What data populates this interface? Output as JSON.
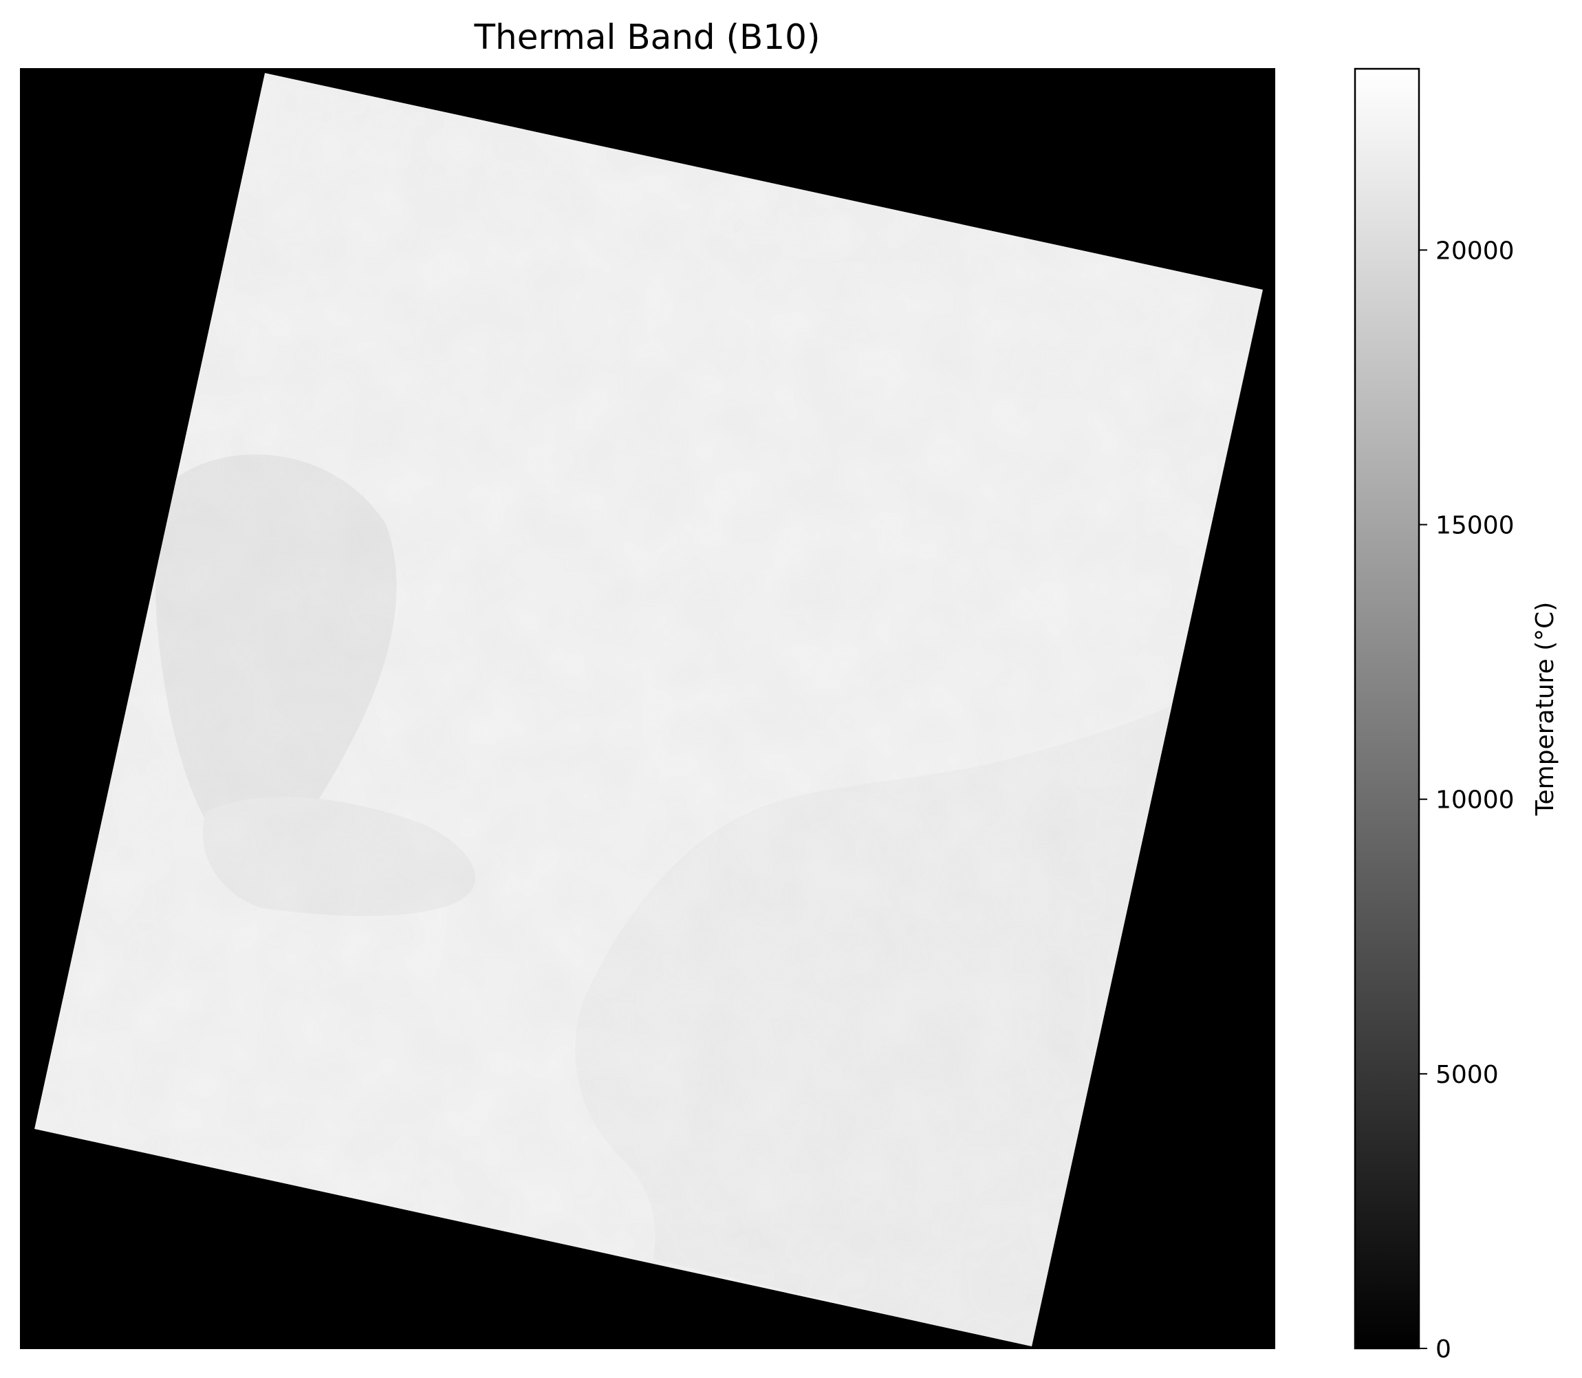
{
  "figure": {
    "title": "Thermal Band (B10)"
  },
  "colorbar": {
    "label": "Temperature (°C)",
    "min": 0,
    "max": 23300,
    "colormap": "gray",
    "ticks": [
      {
        "value": 0,
        "label": "0"
      },
      {
        "value": 5000,
        "label": "5000"
      },
      {
        "value": 10000,
        "label": "10000"
      },
      {
        "value": 15000,
        "label": "15000"
      },
      {
        "value": 20000,
        "label": "20000"
      }
    ]
  },
  "image": {
    "background_color": "#000000",
    "land_color": "#f2f2f2",
    "water_color": "#eeeeee",
    "border_color": "#000000"
  }
}
